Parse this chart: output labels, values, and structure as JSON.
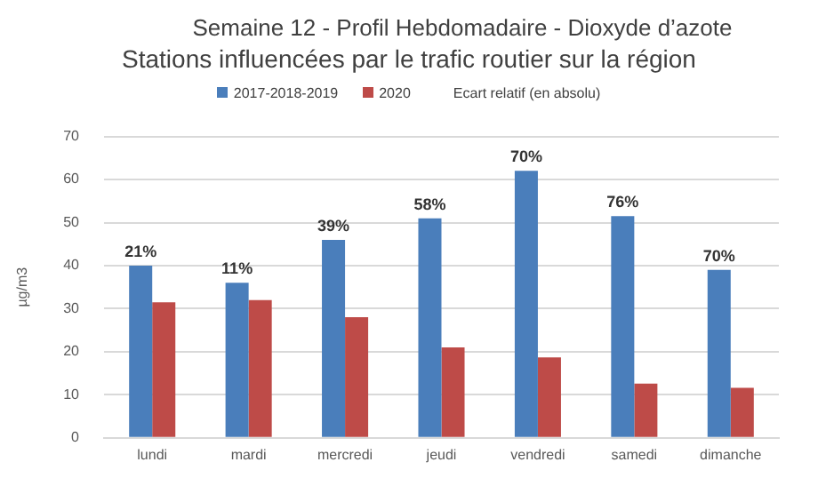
{
  "chart_data": {
    "type": "bar",
    "title": "Semaine 12 - Profil Hebdomadaire  - Dioxyde d’azote",
    "subtitle": "Stations influencées par le trafic routier sur la région",
    "ylabel": "µg/m3",
    "categories": [
      "lundi",
      "mardi",
      "mercredi",
      "jeudi",
      "vendredi",
      "samedi",
      "dimanche"
    ],
    "series": [
      {
        "name": "2017-2018-2019",
        "color": "#4a7ebb",
        "values": [
          40,
          36,
          46,
          51,
          62,
          51.5,
          39
        ]
      },
      {
        "name": "2020",
        "color": "#be4b48",
        "values": [
          31.5,
          32,
          28,
          21,
          18.7,
          12.6,
          11.6
        ]
      }
    ],
    "annotations": [
      "Ecart relatif (en absolu)",
      {
        "text": "21%",
        "x": "lundi",
        "y": 40
      },
      {
        "text": "11%",
        "x": "mardi",
        "y": 36
      },
      {
        "text": "39%",
        "x": "mercredi",
        "y": 46
      },
      {
        "text": "58%",
        "x": "jeudi",
        "y": 51
      },
      {
        "text": "70%",
        "x": "vendredi",
        "y": 62
      },
      {
        "text": "76%",
        "x": "samedi",
        "y": 51.5
      },
      {
        "text": "70%",
        "x": "dimanche",
        "y": 39
      }
    ],
    "ylim": [
      0,
      70
    ],
    "yticks": [
      0,
      10,
      20,
      30,
      40,
      50,
      60,
      70
    ],
    "grid": "y",
    "legend": "top"
  }
}
